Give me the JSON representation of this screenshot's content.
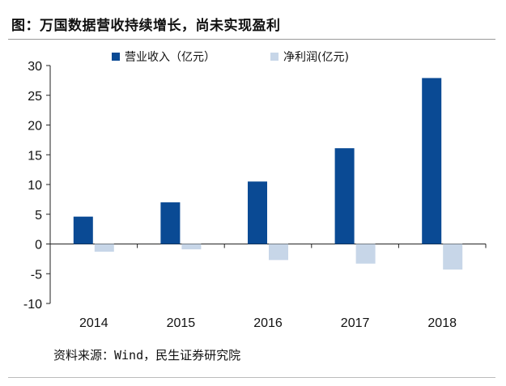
{
  "title": "图：万国数据营收持续增长，尚未实现盈利",
  "source": "资料来源：Wind，民生证券研究院",
  "colors": {
    "revenue": "#0a4a94",
    "profit": "#c7d6e8"
  },
  "chart_data": {
    "type": "bar",
    "categories": [
      "2014",
      "2015",
      "2016",
      "2017",
      "2018"
    ],
    "series": [
      {
        "name": "营业收入（亿元）",
        "values": [
          4.6,
          7.0,
          10.5,
          16.1,
          27.9
        ]
      },
      {
        "name": "净利润(亿元)",
        "values": [
          -1.3,
          -0.9,
          -2.7,
          -3.3,
          -4.3
        ]
      }
    ],
    "ylim": [
      -10,
      30
    ],
    "yticks": [
      30,
      25,
      20,
      15,
      10,
      5,
      0,
      -5,
      -10
    ],
    "legend": "top",
    "grid": false
  }
}
